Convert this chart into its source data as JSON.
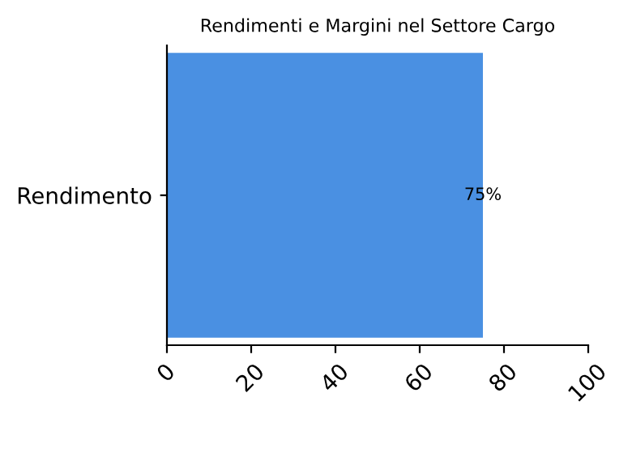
{
  "chart_data": {
    "type": "bar",
    "orientation": "horizontal",
    "title": "Rendimenti e Margini nel Settore Cargo",
    "categories": [
      "Rendimento"
    ],
    "values": [
      75
    ],
    "value_labels": [
      "75%"
    ],
    "color": "#4a90e2",
    "xlim": [
      0,
      100
    ],
    "xticks": [
      0,
      20,
      40,
      60,
      80,
      100
    ]
  }
}
